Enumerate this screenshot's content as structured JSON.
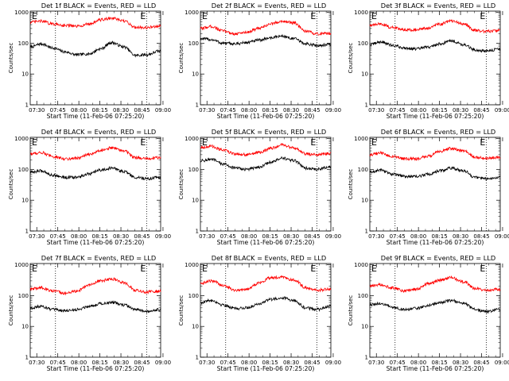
{
  "chart_data": [
    {
      "type": "line",
      "title": "Det 1f BLACK = Events, RED = LLD",
      "xlabel": "Start Time (11-Feb-06 07:25:20)",
      "ylabel": "Counts/sec",
      "x_ticks": [
        "07:30",
        "07:45",
        "08:00",
        "08:15",
        "08:30",
        "08:45",
        "09:00"
      ],
      "y_ticks": [
        "1",
        "10",
        "100",
        "1000"
      ],
      "y_scale": "log",
      "ylim": [
        1,
        1100
      ],
      "xlim_minutes": [
        0,
        93
      ],
      "vlines_minutes": [
        18,
        83
      ],
      "markers": [
        "E",
        "E"
      ],
      "series": [
        {
          "color": "#000000",
          "x_minutes": [
            0,
            8,
            16,
            25,
            33,
            42,
            50,
            58,
            67,
            75,
            83,
            92
          ],
          "values": [
            75,
            95,
            70,
            52,
            42,
            45,
            65,
            105,
            75,
            40,
            42,
            55
          ]
        },
        {
          "color": "#ff0000",
          "x_minutes": [
            0,
            8,
            16,
            25,
            33,
            42,
            50,
            58,
            67,
            75,
            83,
            92
          ],
          "values": [
            480,
            520,
            420,
            380,
            350,
            420,
            570,
            650,
            520,
            330,
            320,
            360
          ]
        }
      ]
    },
    {
      "type": "line",
      "title": "Det 2f BLACK = Events, RED = LLD",
      "xlabel": "Start Time (11-Feb-06 07:25:20)",
      "ylabel": "Counts/sec",
      "x_ticks": [
        "07:30",
        "07:45",
        "08:00",
        "08:15",
        "08:30",
        "08:45",
        "09:00"
      ],
      "y_ticks": [
        "1",
        "10",
        "100",
        "1000"
      ],
      "y_scale": "log",
      "ylim": [
        1,
        1100
      ],
      "xlim_minutes": [
        0,
        93
      ],
      "vlines_minutes": [
        18,
        83
      ],
      "markers": [
        "E",
        "E"
      ],
      "series": [
        {
          "color": "#000000",
          "x_minutes": [
            0,
            8,
            16,
            25,
            33,
            42,
            50,
            58,
            67,
            75,
            83,
            92
          ],
          "values": [
            140,
            130,
            100,
            95,
            105,
            125,
            150,
            170,
            140,
            95,
            85,
            90
          ]
        },
        {
          "color": "#ff0000",
          "x_minutes": [
            0,
            8,
            16,
            25,
            33,
            42,
            50,
            58,
            67,
            75,
            83,
            92
          ],
          "values": [
            300,
            350,
            250,
            200,
            230,
            300,
            420,
            520,
            450,
            240,
            200,
            210
          ]
        }
      ]
    },
    {
      "type": "line",
      "title": "Det 3f BLACK = Events, RED = LLD",
      "xlabel": "Start Time (11-Feb-06 07:25:20)",
      "ylabel": "Counts/sec",
      "x_ticks": [
        "07:30",
        "07:45",
        "08:00",
        "08:15",
        "08:30",
        "08:45",
        "09:00"
      ],
      "y_ticks": [
        "1",
        "10",
        "100",
        "1000"
      ],
      "y_scale": "log",
      "ylim": [
        1,
        1100
      ],
      "xlim_minutes": [
        0,
        93
      ],
      "vlines_minutes": [
        18,
        83
      ],
      "markers": [
        "E",
        "E"
      ],
      "series": [
        {
          "color": "#000000",
          "x_minutes": [
            0,
            8,
            16,
            25,
            33,
            42,
            50,
            58,
            67,
            75,
            83,
            92
          ],
          "values": [
            90,
            110,
            85,
            70,
            65,
            75,
            95,
            120,
            90,
            60,
            55,
            65
          ]
        },
        {
          "color": "#ff0000",
          "x_minutes": [
            0,
            8,
            16,
            25,
            33,
            42,
            50,
            58,
            67,
            75,
            83,
            92
          ],
          "values": [
            380,
            420,
            320,
            280,
            270,
            310,
            420,
            520,
            420,
            260,
            240,
            260
          ]
        }
      ]
    },
    {
      "type": "line",
      "title": "Det 4f BLACK = Events, RED = LLD",
      "xlabel": "Start Time (11-Feb-06 07:25:20)",
      "ylabel": "Counts/sec",
      "x_ticks": [
        "07:30",
        "07:45",
        "08:00",
        "08:15",
        "08:30",
        "08:45",
        "09:00"
      ],
      "y_ticks": [
        "1",
        "10",
        "100",
        "1000"
      ],
      "y_scale": "log",
      "ylim": [
        1,
        1100
      ],
      "xlim_minutes": [
        0,
        93
      ],
      "vlines_minutes": [
        18,
        83
      ],
      "markers": [
        "E",
        "E"
      ],
      "series": [
        {
          "color": "#000000",
          "x_minutes": [
            0,
            8,
            16,
            25,
            33,
            42,
            50,
            58,
            67,
            75,
            83,
            92
          ],
          "values": [
            80,
            90,
            65,
            55,
            55,
            70,
            95,
            110,
            85,
            55,
            50,
            55
          ]
        },
        {
          "color": "#ff0000",
          "x_minutes": [
            0,
            8,
            16,
            25,
            33,
            42,
            50,
            58,
            67,
            75,
            83,
            92
          ],
          "values": [
            320,
            350,
            260,
            220,
            230,
            300,
            420,
            500,
            400,
            240,
            220,
            240
          ]
        }
      ]
    },
    {
      "type": "line",
      "title": "Det 5f BLACK = Events, RED = LLD",
      "xlabel": "Start Time (11-Feb-06 07:25:20)",
      "ylabel": "Counts/sec",
      "x_ticks": [
        "07:30",
        "07:45",
        "08:00",
        "08:15",
        "08:30",
        "08:45",
        "09:00"
      ],
      "y_ticks": [
        "1",
        "10",
        "100",
        "1000"
      ],
      "y_scale": "log",
      "ylim": [
        1,
        1100
      ],
      "xlim_minutes": [
        0,
        93
      ],
      "vlines_minutes": [
        18,
        83
      ],
      "markers": [
        "E",
        "E"
      ],
      "series": [
        {
          "color": "#000000",
          "x_minutes": [
            0,
            8,
            16,
            25,
            33,
            42,
            50,
            58,
            67,
            75,
            83,
            92
          ],
          "values": [
            190,
            210,
            150,
            110,
            100,
            120,
            170,
            230,
            190,
            110,
            100,
            120
          ]
        },
        {
          "color": "#ff0000",
          "x_minutes": [
            0,
            8,
            16,
            25,
            33,
            42,
            50,
            58,
            67,
            75,
            83,
            92
          ],
          "values": [
            520,
            560,
            420,
            320,
            300,
            350,
            480,
            620,
            500,
            320,
            300,
            330
          ]
        }
      ]
    },
    {
      "type": "line",
      "title": "Det 6f BLACK = Events, RED = LLD",
      "xlabel": "Start Time (11-Feb-06 07:25:20)",
      "ylabel": "Counts/sec",
      "x_ticks": [
        "07:30",
        "07:45",
        "08:00",
        "08:15",
        "08:30",
        "08:45",
        "09:00"
      ],
      "y_ticks": [
        "1",
        "10",
        "100",
        "1000"
      ],
      "y_scale": "log",
      "ylim": [
        1,
        1100
      ],
      "xlim_minutes": [
        0,
        93
      ],
      "vlines_minutes": [
        18,
        83
      ],
      "markers": [
        "E",
        "E"
      ],
      "series": [
        {
          "color": "#000000",
          "x_minutes": [
            0,
            8,
            16,
            25,
            33,
            42,
            50,
            58,
            67,
            75,
            83,
            92
          ],
          "values": [
            80,
            95,
            70,
            60,
            58,
            70,
            90,
            110,
            90,
            55,
            50,
            55
          ]
        },
        {
          "color": "#ff0000",
          "x_minutes": [
            0,
            8,
            16,
            25,
            33,
            42,
            50,
            58,
            67,
            75,
            83,
            92
          ],
          "values": [
            300,
            340,
            260,
            220,
            220,
            270,
            380,
            480,
            400,
            250,
            230,
            250
          ]
        }
      ]
    },
    {
      "type": "line",
      "title": "Det 7f BLACK = Events, RED = LLD",
      "xlabel": "Start Time (11-Feb-06 07:25:20)",
      "ylabel": "Counts/sec",
      "x_ticks": [
        "07:30",
        "07:45",
        "08:00",
        "08:15",
        "08:30",
        "08:45",
        "09:00"
      ],
      "y_ticks": [
        "1",
        "10",
        "100",
        "1000"
      ],
      "y_scale": "log",
      "ylim": [
        1,
        1100
      ],
      "xlim_minutes": [
        0,
        93
      ],
      "vlines_minutes": [
        18,
        83
      ],
      "markers": [
        "E",
        "E"
      ],
      "series": [
        {
          "color": "#000000",
          "x_minutes": [
            0,
            8,
            16,
            25,
            33,
            42,
            50,
            58,
            67,
            75,
            83,
            92
          ],
          "values": [
            40,
            45,
            35,
            32,
            35,
            45,
            55,
            60,
            50,
            35,
            30,
            35
          ]
        },
        {
          "color": "#ff0000",
          "x_minutes": [
            0,
            8,
            16,
            25,
            33,
            42,
            50,
            58,
            67,
            75,
            83,
            92
          ],
          "values": [
            160,
            180,
            140,
            120,
            140,
            220,
            300,
            350,
            260,
            150,
            130,
            140
          ]
        }
      ]
    },
    {
      "type": "line",
      "title": "Det 8f BLACK = Events, RED = LLD",
      "xlabel": "Start Time (11-Feb-06 07:25:20)",
      "ylabel": "Counts/sec",
      "x_ticks": [
        "07:30",
        "07:45",
        "08:00",
        "08:15",
        "08:30",
        "08:45",
        "09:00"
      ],
      "y_ticks": [
        "1",
        "10",
        "100",
        "1000"
      ],
      "y_scale": "log",
      "ylim": [
        1,
        1100
      ],
      "xlim_minutes": [
        0,
        93
      ],
      "vlines_minutes": [
        18,
        83
      ],
      "markers": [
        "E",
        "E"
      ],
      "series": [
        {
          "color": "#000000",
          "x_minutes": [
            0,
            8,
            16,
            25,
            33,
            42,
            50,
            58,
            67,
            75,
            83,
            92
          ],
          "values": [
            60,
            70,
            50,
            38,
            40,
            55,
            75,
            85,
            70,
            40,
            35,
            45
          ]
        },
        {
          "color": "#ff0000",
          "x_minutes": [
            0,
            8,
            16,
            25,
            33,
            42,
            50,
            58,
            67,
            75,
            83,
            92
          ],
          "values": [
            250,
            300,
            220,
            150,
            160,
            260,
            380,
            400,
            320,
            180,
            150,
            160
          ]
        }
      ]
    },
    {
      "type": "line",
      "title": "Det 9f BLACK = Events, RED = LLD",
      "xlabel": "Start Time (11-Feb-06 07:25:20)",
      "ylabel": "Counts/sec",
      "x_ticks": [
        "07:30",
        "07:45",
        "08:00",
        "08:15",
        "08:30",
        "08:45",
        "09:00"
      ],
      "y_ticks": [
        "1",
        "10",
        "100",
        "1000"
      ],
      "y_scale": "log",
      "ylim": [
        1,
        1100
      ],
      "xlim_minutes": [
        0,
        93
      ],
      "vlines_minutes": [
        18,
        83
      ],
      "markers": [
        "E",
        "E"
      ],
      "series": [
        {
          "color": "#000000",
          "x_minutes": [
            0,
            8,
            16,
            25,
            33,
            42,
            50,
            58,
            67,
            75,
            83,
            92
          ],
          "values": [
            50,
            55,
            42,
            35,
            38,
            48,
            60,
            70,
            55,
            35,
            30,
            35
          ]
        },
        {
          "color": "#ff0000",
          "x_minutes": [
            0,
            8,
            16,
            25,
            33,
            42,
            50,
            58,
            67,
            75,
            83,
            92
          ],
          "values": [
            200,
            230,
            180,
            140,
            160,
            240,
            320,
            380,
            280,
            170,
            150,
            160
          ]
        }
      ]
    }
  ]
}
